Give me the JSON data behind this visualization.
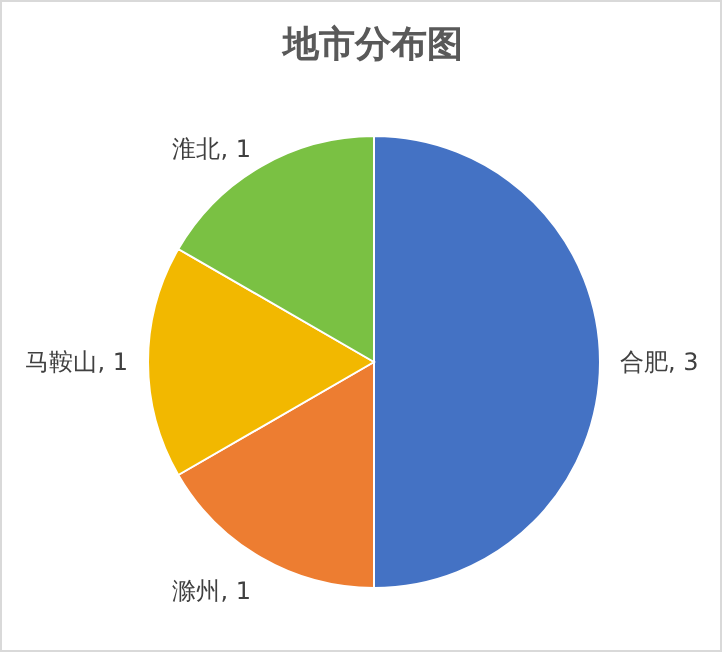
{
  "chart_data": {
    "type": "pie",
    "title": "地市分布图",
    "categories": [
      "合肥",
      "滁州",
      "马鞍山",
      "淮北"
    ],
    "values": [
      3,
      1,
      1,
      1
    ],
    "colors": [
      "#4472c4",
      "#ed7d31",
      "#f2b800",
      "#7ac143"
    ],
    "value_labels": [
      ", 3",
      ", 1",
      ", 1",
      ", 1"
    ]
  }
}
